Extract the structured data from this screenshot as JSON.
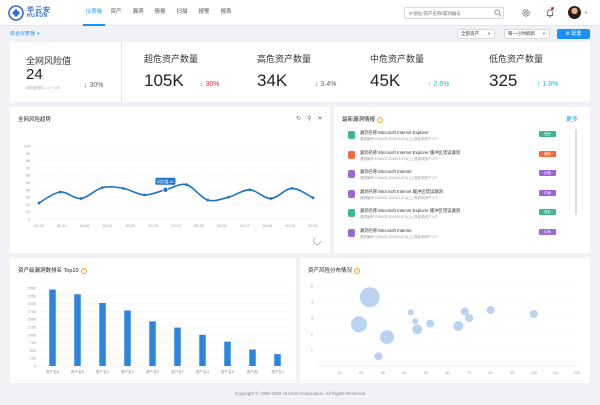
{
  "header": {
    "logo_cn": "华云安",
    "logo_en": "HUAUN",
    "nav": [
      "仪表板",
      "资产",
      "漏洞",
      "情报",
      "扫描",
      "报警",
      "报表"
    ],
    "active_nav": 0,
    "search_placeholder": "IP地址/资产名称/漏洞编号"
  },
  "toolbar": {
    "breadcrumb": "综合仪表板",
    "asset_select": "全部资产",
    "interval_select": "每一小时刷新",
    "config_button": "配置"
  },
  "stats": {
    "overall": {
      "label": "全网风险值",
      "value": "24",
      "sub": "风险值指标：0 ～ 100",
      "trend": "30%"
    },
    "cards": [
      {
        "label": "超危资产数量",
        "value": "105K",
        "trend": "30%",
        "dir": "↓"
      },
      {
        "label": "高危资产数量",
        "value": "34K",
        "trend": "3.4%",
        "dir": "↓"
      },
      {
        "label": "中危资产数量",
        "value": "45K",
        "trend": "2.6%",
        "dir": "↑"
      },
      {
        "label": "低危资产数量",
        "value": "325",
        "trend": "1.8%",
        "dir": "↑"
      }
    ]
  },
  "trend_panel": {
    "title": "全网风险趋势",
    "tooltip": "风险值:40"
  },
  "vuln_panel": {
    "title": "最新漏洞情报",
    "more": "更多",
    "items": [
      {
        "title": "漏洞名称:Microsoft Internet Explorer",
        "meta": "漏洞编号:CNNVD-201901-874(上)   首影响资产:3个",
        "tag": "低危",
        "color": "#3ab795"
      },
      {
        "title": "漏洞名称:Microsoft Internet Explorer 缓冲区错误漏洞",
        "meta": "漏洞编号:CNNVD-201901-874(上)   首影响资产:3个",
        "tag": "超危",
        "color": "#f5683a"
      },
      {
        "title": "漏洞名称:Microsoft Internet",
        "meta": "漏洞编号:CNNVD-201901-874(上)   首影响资产:3个",
        "tag": "中危",
        "color": "#9b67d8"
      },
      {
        "title": "漏洞名称:Microsoft Internet 缓冲区错误漏洞",
        "meta": "漏洞编号:CNNVD-201901-874(上)   首影响资产:3个",
        "tag": "中危",
        "color": "#9b67d8"
      },
      {
        "title": "漏洞名称:Microsoft Internet Explorer 缓冲区错误漏洞",
        "meta": "漏洞编号:CNNVD-201901-874(上)   首影响资产:3个",
        "tag": "低危",
        "color": "#3ab795"
      },
      {
        "title": "漏洞名称:Microsoft Internet",
        "meta": "漏洞编号:CNNVD-201901-874(上)   首影响资产:3个",
        "tag": "中危",
        "color": "#9b67d8"
      }
    ]
  },
  "bar_panel": {
    "title": "资产级漏洞数排名 Top10"
  },
  "scatter_panel": {
    "title": "资产风险分布情况"
  },
  "footer": "Copyright © 1996-2020 HUAUN Corporation. All Rights Reserved",
  "chart_data": [
    {
      "type": "line",
      "title": "全网风险趋势",
      "categories": [
        "00:18",
        "00:19",
        "00:20",
        "00:21",
        "00:22",
        "00:23",
        "00:24",
        "00:25",
        "00:26",
        "00:27",
        "00:28",
        "00:29",
        "00:30",
        "00:31"
      ],
      "values": [
        22,
        37,
        28,
        43,
        42,
        33,
        40,
        47,
        26,
        30,
        40,
        28,
        42,
        29
      ],
      "ylim": [
        0,
        100
      ],
      "yticks": [
        0,
        10,
        20,
        30,
        40,
        50,
        60,
        70,
        80,
        90,
        100
      ],
      "x_tick_labels": [
        "00:18",
        "00:19",
        "00:20",
        "00:21",
        "00:22",
        "00:23",
        "00:24",
        "00:25",
        "00:26",
        "00:27",
        "00:28",
        "00:29",
        "00:31"
      ],
      "highlight_index": 6
    },
    {
      "type": "bar",
      "title": "资产级漏洞数排名 Top10",
      "categories": [
        "资产名A",
        "资产名B",
        "资产名C",
        "资产名D",
        "资产名E",
        "资产名F",
        "资产名G",
        "资产名H",
        "资产名I",
        "资产名J"
      ],
      "values": [
        2450,
        2300,
        2020,
        1780,
        1430,
        1230,
        1000,
        780,
        530,
        380
      ],
      "ylim": [
        0,
        2500
      ],
      "yticks": [
        0,
        250,
        500,
        750,
        1000,
        1250,
        1500,
        1750,
        2000,
        2250,
        2500
      ]
    },
    {
      "type": "scatter",
      "title": "资产风险分布情况",
      "xlim": [
        0,
        120
      ],
      "ylim": [
        0,
        5
      ],
      "xticks": [
        10,
        20,
        30,
        40,
        50,
        60,
        70,
        80,
        90,
        100,
        110,
        120
      ],
      "yticks": [
        1,
        2,
        3,
        4,
        5
      ],
      "points": [
        {
          "x": 24,
          "y": 4.3,
          "size": 10
        },
        {
          "x": 19,
          "y": 2.6,
          "size": 8
        },
        {
          "x": 43,
          "y": 3.35,
          "size": 3
        },
        {
          "x": 45,
          "y": 2.8,
          "size": 3
        },
        {
          "x": 46,
          "y": 2.3,
          "size": 5
        },
        {
          "x": 52,
          "y": 2.65,
          "size": 4
        },
        {
          "x": 65,
          "y": 2.5,
          "size": 5
        },
        {
          "x": 68,
          "y": 3.4,
          "size": 4
        },
        {
          "x": 70,
          "y": 3.0,
          "size": 4
        },
        {
          "x": 80,
          "y": 3.5,
          "size": 4
        },
        {
          "x": 100,
          "y": 3.25,
          "size": 4
        },
        {
          "x": 28,
          "y": 0.6,
          "size": 4
        },
        {
          "x": 32,
          "y": 1.8,
          "size": 7
        }
      ]
    }
  ]
}
